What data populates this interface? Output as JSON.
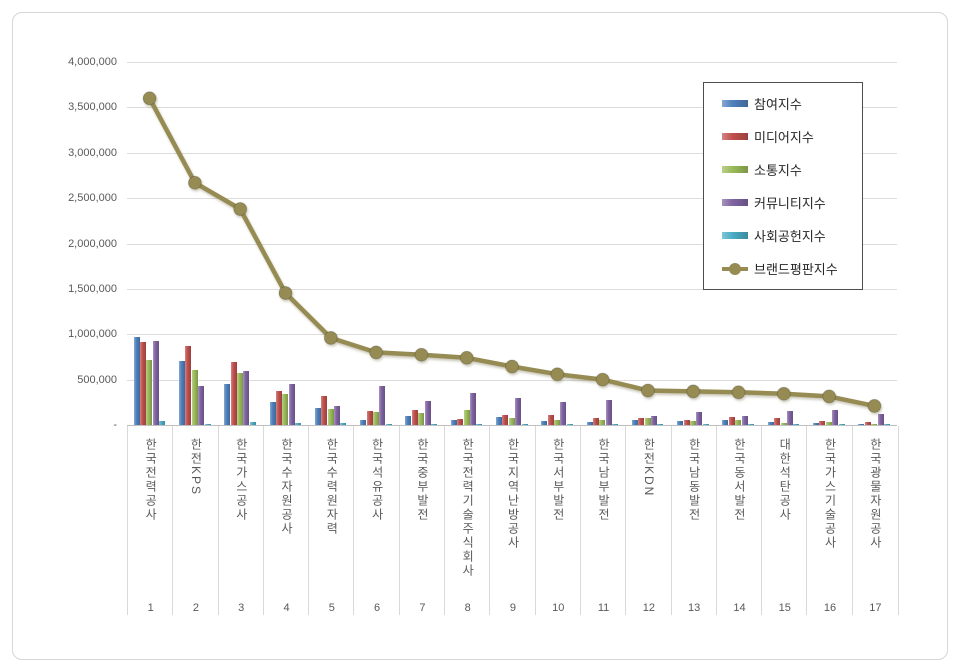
{
  "chart_data": {
    "type": "bar",
    "combo": "bar-with-line-overlay",
    "title": "",
    "categories": [
      "한국전력공사",
      "한전KPS",
      "한국가스공사",
      "한국수자원공사",
      "한국수력원자력",
      "한국석유공사",
      "한국중부발전",
      "한국전력기술주식회사",
      "한국지역난방공사",
      "한국서부발전",
      "한국남부발전",
      "한전KDN",
      "한국남동발전",
      "한국동서발전",
      "대한석탄공사",
      "한국가스기술공사",
      "한국광물자원공사"
    ],
    "rank_labels": [
      "1",
      "2",
      "3",
      "4",
      "5",
      "6",
      "7",
      "8",
      "9",
      "10",
      "11",
      "12",
      "13",
      "14",
      "15",
      "16",
      "17"
    ],
    "series": [
      {
        "name": "참여지수",
        "semantic": "participation-index",
        "kind": "bar",
        "color": "#4F81BD",
        "values": [
          970000,
          710000,
          450000,
          250000,
          185000,
          55000,
          100000,
          50000,
          85000,
          40000,
          35000,
          55000,
          40000,
          55000,
          35000,
          20000,
          15000
        ]
      },
      {
        "name": "미디어지수",
        "semantic": "media-index",
        "kind": "bar",
        "color": "#C0504D",
        "values": [
          910000,
          870000,
          690000,
          375000,
          315000,
          150000,
          160000,
          70000,
          110000,
          115000,
          75000,
          80000,
          55000,
          90000,
          80000,
          40000,
          30000
        ]
      },
      {
        "name": "소통지수",
        "semantic": "communication-index",
        "kind": "bar",
        "color": "#9BBB59",
        "values": [
          720000,
          610000,
          570000,
          340000,
          180000,
          140000,
          130000,
          160000,
          80000,
          55000,
          50000,
          75000,
          45000,
          55000,
          25000,
          30000,
          15000
        ]
      },
      {
        "name": "커뮤니티지수",
        "semantic": "community-index",
        "kind": "bar",
        "color": "#8064A2",
        "values": [
          930000,
          435000,
          600000,
          450000,
          210000,
          430000,
          260000,
          355000,
          300000,
          255000,
          275000,
          100000,
          145000,
          100000,
          150000,
          160000,
          120000
        ]
      },
      {
        "name": "사회공헌지수",
        "semantic": "social-contribution-index",
        "kind": "bar",
        "color": "#4BACC6",
        "values": [
          40000,
          15000,
          30000,
          25000,
          25000,
          10000,
          10000,
          8000,
          10000,
          10000,
          8000,
          10000,
          8000,
          10000,
          8000,
          8000,
          8000
        ]
      },
      {
        "name": "브랜드평판지수",
        "semantic": "brand-reputation-index",
        "kind": "line",
        "color": "#958B53",
        "values": [
          3600000,
          2670000,
          2380000,
          1455000,
          960000,
          800000,
          775000,
          740000,
          645000,
          560000,
          500000,
          380000,
          370000,
          360000,
          345000,
          315000,
          210000
        ]
      }
    ],
    "y_axis": {
      "min": 0,
      "max": 4000000,
      "step": 500000,
      "tick_labels": [
        "4,000,000",
        "3,500,000",
        "3,000,000",
        "2,500,000",
        "2,000,000",
        "1,500,000",
        "1,000,000",
        "500,000",
        "-"
      ]
    },
    "legend": {
      "position": "inside-top-right"
    },
    "grid": true,
    "style": {
      "grid_color": "#dcdcdc",
      "axis_color": "#bfbfbf",
      "label_color": "#595959",
      "legend_border_color": "#4d4d4d",
      "line_color": "#958B53"
    }
  }
}
